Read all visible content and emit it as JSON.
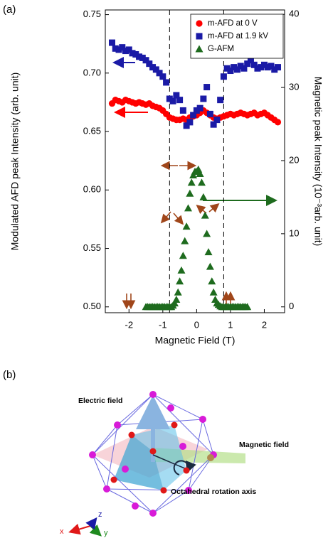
{
  "chart_data": {
    "type": "scatter",
    "xlabel": "Magnetic Field (T)",
    "ylabel": "Modulated AFD peak Intensity (arb. unit)",
    "y2label": "Magnetic peak Intensity (10⁻³arb. unit)",
    "xlim": [
      -2.7,
      2.6
    ],
    "ylim": [
      0.495,
      0.754
    ],
    "y2lim": [
      -0.8,
      40.6
    ],
    "xticks": [
      -2,
      -1,
      0,
      1,
      2
    ],
    "yticks": [
      {
        "value": 0.5,
        "label": "0.50"
      },
      0.55,
      {
        "value": 0.6,
        "label": "0.60"
      },
      0.65,
      {
        "value": 0.7,
        "label": "0.70"
      },
      0.75
    ],
    "y2ticks": [
      0,
      10,
      20,
      30,
      40
    ],
    "vlines": [
      -0.8,
      0.8
    ],
    "legend": "upper right",
    "series": [
      {
        "name": "m-AFD at 0 V",
        "color": "#ff0000",
        "marker": "circle",
        "x": [
          -2.5,
          -2.4,
          -2.3,
          -2.2,
          -2.1,
          -2,
          -1.9,
          -1.8,
          -1.7,
          -1.6,
          -1.5,
          -1.4,
          -1.3,
          -1.2,
          -1.1,
          -1,
          -0.9,
          -0.8,
          -0.7,
          -0.6,
          -0.5,
          -0.4,
          -0.3,
          -0.2,
          -0.1,
          0,
          0.1,
          0.2,
          0.3,
          0.4,
          0.5,
          0.6,
          0.7,
          0.8,
          0.9,
          1,
          1.1,
          1.2,
          1.3,
          1.4,
          1.5,
          1.6,
          1.7,
          1.8,
          1.9,
          2,
          2.1,
          2.2,
          2.3,
          2.4
        ],
        "values": [
          0.674,
          0.677,
          0.676,
          0.675,
          0.677,
          0.676,
          0.675,
          0.674,
          0.675,
          0.674,
          0.673,
          0.674,
          0.672,
          0.671,
          0.67,
          0.668,
          0.665,
          0.662,
          0.661,
          0.66,
          0.66,
          0.661,
          0.66,
          0.662,
          0.663,
          0.664,
          0.666,
          0.668,
          0.666,
          0.664,
          0.662,
          0.661,
          0.662,
          0.663,
          0.664,
          0.665,
          0.664,
          0.665,
          0.666,
          0.665,
          0.664,
          0.665,
          0.666,
          0.664,
          0.665,
          0.666,
          0.664,
          0.662,
          0.66,
          0.658
        ]
      },
      {
        "name": "m-AFD at 1.9 kV",
        "color": "#1a1aa6",
        "marker": "square",
        "x": [
          -2.5,
          -2.4,
          -2.3,
          -2.2,
          -2.1,
          -2,
          -1.9,
          -1.8,
          -1.7,
          -1.6,
          -1.5,
          -1.4,
          -1.3,
          -1.2,
          -1.1,
          -1,
          -0.9,
          -0.8,
          -0.7,
          -0.6,
          -0.5,
          -0.4,
          -0.3,
          -0.2,
          -0.1,
          0,
          0.1,
          0.2,
          0.3,
          0.4,
          0.5,
          0.6,
          0.7,
          0.8,
          0.9,
          1,
          1.1,
          1.2,
          1.3,
          1.4,
          1.5,
          1.6,
          1.7,
          1.8,
          1.9,
          2,
          2.1,
          2.2,
          2.3,
          2.4
        ],
        "values": [
          0.726,
          0.721,
          0.72,
          0.722,
          0.719,
          0.72,
          0.717,
          0.716,
          0.714,
          0.713,
          0.711,
          0.708,
          0.705,
          0.703,
          0.7,
          0.697,
          0.692,
          0.678,
          0.676,
          0.681,
          0.677,
          0.668,
          0.655,
          0.658,
          0.664,
          0.668,
          0.67,
          0.678,
          0.688,
          0.665,
          0.656,
          0.66,
          0.677,
          0.697,
          0.704,
          0.702,
          0.705,
          0.703,
          0.706,
          0.704,
          0.708,
          0.711,
          0.707,
          0.704,
          0.705,
          0.707,
          0.705,
          0.706,
          0.703,
          0.705
        ]
      },
      {
        "name": "G-AFM",
        "color": "#1e6b1e",
        "marker": "triangle",
        "axis": "y2",
        "x": [
          -1.5,
          -1.45,
          -1.4,
          -1.35,
          -1.3,
          -1.25,
          -1.2,
          -1.15,
          -1.1,
          -1.05,
          -1,
          -0.95,
          -0.9,
          -0.85,
          -0.8,
          -0.75,
          -0.7,
          -0.65,
          -0.6,
          -0.55,
          -0.5,
          -0.45,
          -0.4,
          -0.35,
          -0.3,
          -0.25,
          -0.2,
          -0.15,
          -0.1,
          -0.05,
          0,
          0.05,
          0.1,
          0.15,
          0.2,
          0.25,
          0.3,
          0.35,
          0.4,
          0.45,
          0.5,
          0.55,
          0.6,
          0.65,
          0.7,
          0.75,
          0.8,
          0.85,
          0.9,
          0.95,
          1,
          1.05,
          1.1,
          1.15,
          1.2,
          1.25,
          1.3,
          1.35,
          1.4,
          1.45,
          1.5
        ],
        "values": [
          0,
          0,
          0,
          0,
          0,
          0,
          0,
          0,
          0,
          0,
          0,
          0,
          0,
          0,
          0,
          0,
          0.2,
          0.5,
          1,
          2,
          3.5,
          5,
          7,
          9,
          11,
          13.5,
          15.5,
          17,
          18,
          18.5,
          18.5,
          18.8,
          18.2,
          17,
          15,
          12.5,
          10,
          7.5,
          5.5,
          3.5,
          2,
          1,
          0.5,
          0.3,
          0.1,
          0,
          0,
          0,
          0,
          0,
          0,
          0,
          0,
          0,
          0,
          0,
          0,
          0,
          0,
          0,
          0
        ]
      }
    ]
  },
  "panel_labels": [
    "(a)",
    "(b)"
  ],
  "diagram": {
    "labels": [
      "Electric field",
      "Magnetic field",
      "Octahedral rotation axis"
    ],
    "axes": [
      "x",
      "y",
      "z"
    ]
  }
}
